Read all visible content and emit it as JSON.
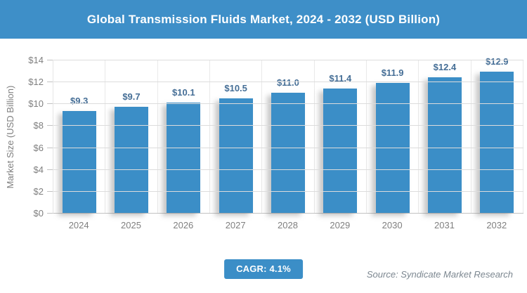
{
  "header": {
    "title": "Global Transmission Fluids Market, 2024 - 2032 (USD Billion)"
  },
  "chart_data": {
    "type": "bar",
    "title": "Global Transmission Fluids Market, 2024 - 2032 (USD Billion)",
    "categories": [
      "2024",
      "2025",
      "2026",
      "2027",
      "2028",
      "2029",
      "2030",
      "2031",
      "2032"
    ],
    "values": [
      9.3,
      9.7,
      10.1,
      10.5,
      11.0,
      11.4,
      11.9,
      12.4,
      12.9
    ],
    "value_labels": [
      "$9.3",
      "$9.7",
      "$10.1",
      "$10.5",
      "$11.0",
      "$11.4",
      "$11.9",
      "$12.4",
      "$12.9"
    ],
    "xlabel": "",
    "ylabel": "Market Size (USD Billion)",
    "ylim": [
      0,
      14
    ],
    "ytick_values": [
      0,
      2,
      4,
      6,
      8,
      10,
      12,
      14
    ],
    "ytick_labels": [
      "$0",
      "$2",
      "$4",
      "$6",
      "$8",
      "$10",
      "$12",
      "$14"
    ],
    "grid": "horizontal and vertical light gray gridlines",
    "legend": "none"
  },
  "footer": {
    "cagr_label": "CAGR: 4.1%",
    "source": "Source: Syndicate Market Research"
  },
  "colors": {
    "header_bg": "#3e8fc8",
    "bar": "#3b8ec7",
    "value_label": "#456e96",
    "axis_text": "#7f7f7f",
    "gridline": "#dcdcdc",
    "source_text": "#7c8790",
    "cagr_bg": "#3b8ec7"
  }
}
